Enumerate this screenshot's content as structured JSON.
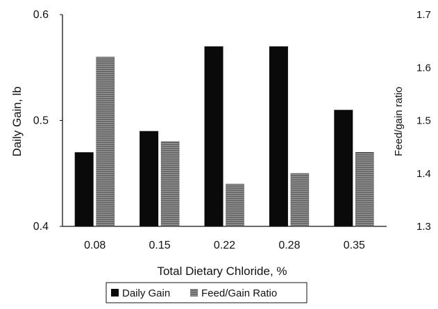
{
  "chart_data": {
    "type": "bar",
    "categories": [
      "0.08",
      "0.15",
      "0.22",
      "0.28",
      "0.35"
    ],
    "xlabel": "Total Dietary Chloride, %",
    "ylabel": "Daily Gain, lb",
    "y2label": "Feed/gain ratio",
    "ylim": [
      0.4,
      0.6
    ],
    "y2lim": [
      1.3,
      1.7
    ],
    "yticks": [
      "0.4",
      "0.5",
      "0.6"
    ],
    "y2ticks": [
      "1.3",
      "1.4",
      "1.5",
      "1.6",
      "1.7"
    ],
    "grid": false,
    "legend_position": "bottom",
    "series": [
      {
        "name": "Daily Gain",
        "axis": "left",
        "color": "#0a0a0a",
        "values": [
          0.47,
          0.49,
          0.57,
          0.57,
          0.51
        ]
      },
      {
        "name": "Feed/Gain Ratio",
        "axis": "right",
        "color": "#8a8a8a",
        "values": [
          1.62,
          1.46,
          1.38,
          1.4,
          1.44
        ]
      }
    ]
  }
}
